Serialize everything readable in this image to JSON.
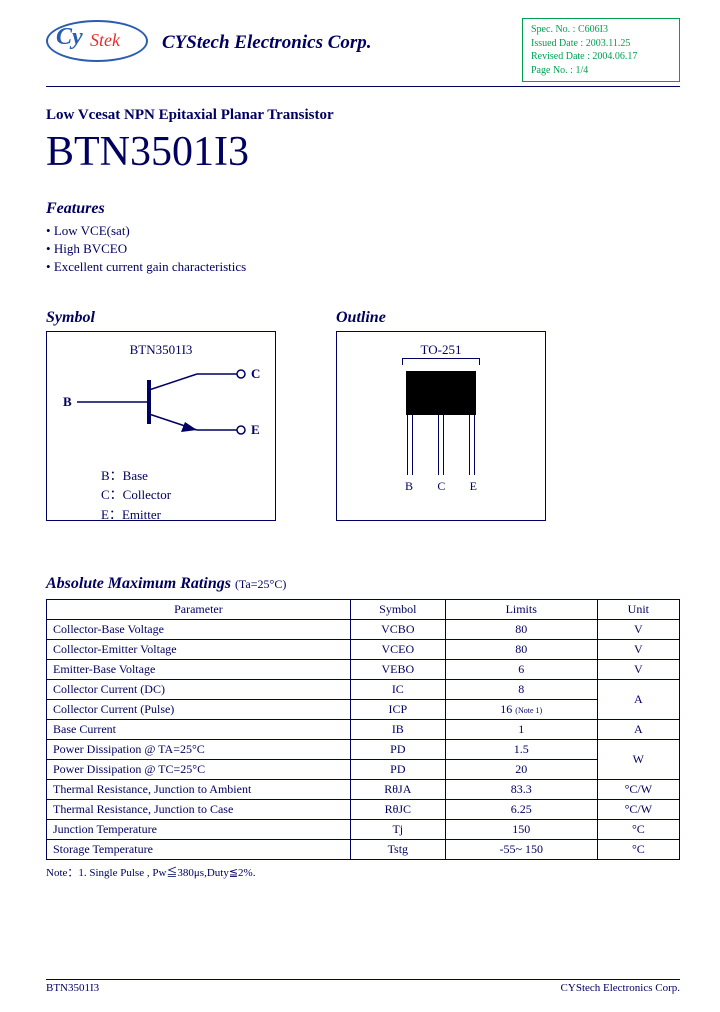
{
  "header": {
    "logo_main": "Cy",
    "logo_sub": "Stek",
    "company": "CYStech Electronics Corp.",
    "spec": {
      "spec_no_label": "Spec. No. :",
      "spec_no": "C606I3",
      "issued_label": "Issued Date :",
      "issued": "2003.11.25",
      "revised_label": "Revised Date :",
      "revised": "2004.06.17",
      "page_label": "Page No. :",
      "page": "1/4"
    }
  },
  "title": {
    "subtitle": "Low Vcesat NPN Epitaxial Planar Transistor",
    "part": "BTN3501I3"
  },
  "features": {
    "heading": "Features",
    "items": [
      "Low VCE(sat)",
      "High BVCEO",
      "Excellent current gain characteristics"
    ]
  },
  "symbol": {
    "heading": "Symbol",
    "part_label": "BTN3501I3",
    "pin_b": "B",
    "pin_c": "C",
    "pin_e": "E",
    "legend_b": "B：Base",
    "legend_c": "C：Collector",
    "legend_e": "E：Emitter"
  },
  "outline": {
    "heading": "Outline",
    "package": "TO-251",
    "pin_b": "B",
    "pin_c": "C",
    "pin_e": "E"
  },
  "ratings": {
    "heading": "Absolute Maximum Ratings",
    "condition": "(Ta=25°C)",
    "columns": [
      "Parameter",
      "Symbol",
      "Limits",
      "Unit"
    ],
    "rows": [
      {
        "param": "Collector-Base Voltage",
        "symbol": "VCBO",
        "limits": "80",
        "unit": "V",
        "rowspan_unit": 1
      },
      {
        "param": "Collector-Emitter Voltage",
        "symbol": "VCEO",
        "limits": "80",
        "unit": "V",
        "rowspan_unit": 1
      },
      {
        "param": "Emitter-Base Voltage",
        "symbol": "VEBO",
        "limits": "6",
        "unit": "V",
        "rowspan_unit": 1
      },
      {
        "param": "Collector Current (DC)",
        "symbol": "IC",
        "limits": "8",
        "unit": "A",
        "rowspan_unit": 2
      },
      {
        "param": "Collector Current (Pulse)",
        "symbol": "ICP",
        "limits": "16",
        "note": "(Note 1)"
      },
      {
        "param": "Base Current",
        "symbol": "IB",
        "limits": "1",
        "unit": "A",
        "rowspan_unit": 1
      },
      {
        "param": "Power Dissipation @ TA=25°C",
        "symbol": "PD",
        "limits": "1.5",
        "unit": "W",
        "rowspan_unit": 2
      },
      {
        "param": "Power Dissipation @ TC=25°C",
        "symbol": "PD",
        "limits": "20"
      },
      {
        "param": "Thermal Resistance, Junction to Ambient",
        "symbol": "RθJA",
        "limits": "83.3",
        "unit": "°C/W",
        "rowspan_unit": 1
      },
      {
        "param": "Thermal Resistance, Junction to Case",
        "symbol": "RθJC",
        "limits": "6.25",
        "unit": "°C/W",
        "rowspan_unit": 1
      },
      {
        "param": "Junction Temperature",
        "symbol": "Tj",
        "limits": "150",
        "unit": "°C",
        "rowspan_unit": 1
      },
      {
        "param": "Storage Temperature",
        "symbol": "Tstg",
        "limits": "-55~ 150",
        "unit": "°C",
        "rowspan_unit": 1
      }
    ],
    "note": "Note：1. Single Pulse , Pw≦380μs,Duty≦2%."
  },
  "footer": {
    "left": "BTN3501I3",
    "right": "CYStech Electronics Corp."
  },
  "style": {
    "text_color": "#000060",
    "green": "#00a050",
    "border_color": "#000060",
    "bg": "#ffffff"
  }
}
